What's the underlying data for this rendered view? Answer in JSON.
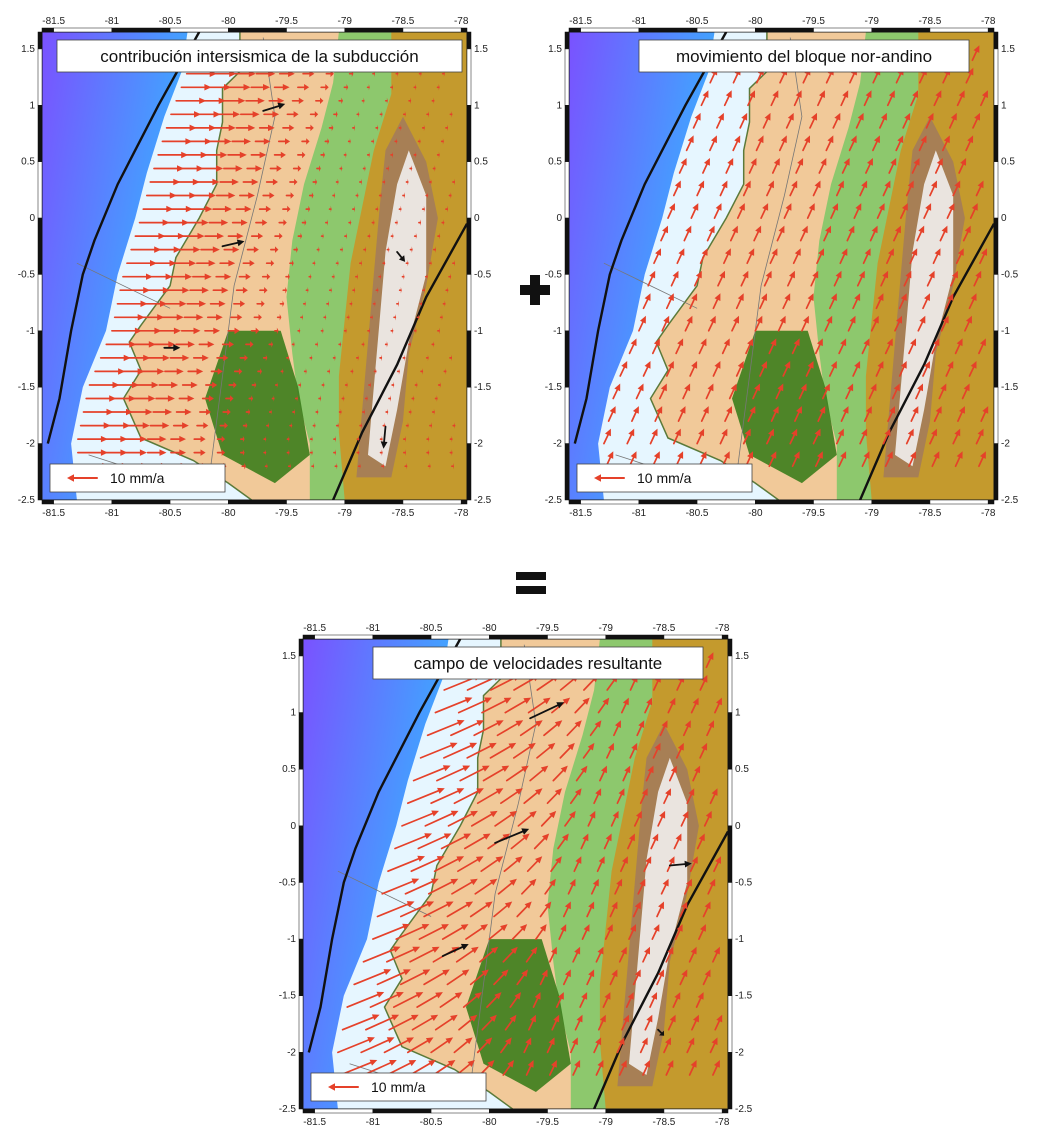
{
  "operators": {
    "plus": "+",
    "equals": "="
  },
  "axes": {
    "lon_ticks": [
      "-81.5",
      "-81",
      "-80.5",
      "-80",
      "-79.5",
      "-79",
      "-78.5",
      "-78"
    ],
    "lat_ticks": [
      "1.5",
      "1",
      "0.5",
      "0",
      "-0.5",
      "-1",
      "-1.5",
      "-2",
      "-2.5"
    ],
    "lon_range": [
      -81.6,
      -77.95
    ],
    "lat_range": [
      -2.5,
      1.65
    ]
  },
  "colors": {
    "ocean_deep": "#7a52ff",
    "ocean": "#3fa6ff",
    "ocean_shallow": "#e6f6ff",
    "lowland": "#f1c999",
    "plain_green": "#8dc86d",
    "forest_green": "#3c7d1c",
    "highland": "#c49a2d",
    "mountain_brown": "#a27a5d",
    "snow": "#f2f0ee",
    "arrow_red": "#e5412a",
    "arrow_black": "#111111"
  },
  "panels": [
    {
      "id": "subduction",
      "title": "contribución intersismica de la subducción",
      "scale_label": "10 mm/a"
    },
    {
      "id": "north_andean",
      "title": "movimiento del bloque nor-andino",
      "scale_label": "10 mm/a"
    },
    {
      "id": "resultant",
      "title": "campo de velocidades resultante",
      "scale_label": "10 mm/a"
    }
  ]
}
